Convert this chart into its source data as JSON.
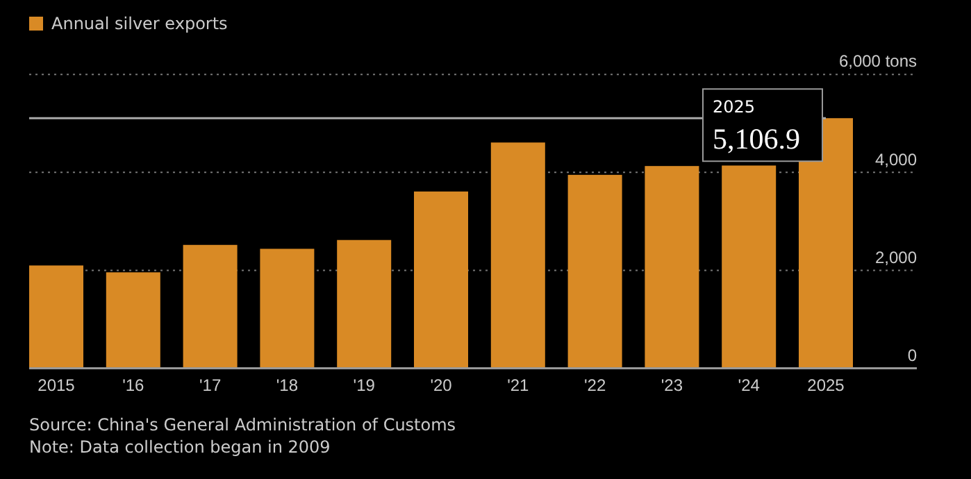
{
  "chart_data": {
    "type": "bar",
    "categories": [
      "2015",
      "'16",
      "'17",
      "'18",
      "'19",
      "'20",
      "'21",
      "'22",
      "'23",
      "'24",
      "2025"
    ],
    "series": [
      {
        "name": "Annual silver exports",
        "color": "#d98a25",
        "values": [
          2100,
          1960,
          2520,
          2440,
          2620,
          3610,
          4610,
          3950,
          4130,
          4140,
          5106.9
        ]
      }
    ],
    "ylim": [
      0,
      6000
    ],
    "yticks": [
      0,
      {
        "value": 2000,
        "label": "2,000"
      },
      {
        "value": 4000,
        "label": "4,000"
      },
      {
        "value": 6000,
        "label": "6,000 tons"
      }
    ],
    "grid": "y",
    "legend": "top left",
    "ref_lines": [
      {
        "axis": "y",
        "value": 5106.9,
        "color": "#aaaaaa"
      }
    ],
    "annotations": [
      {
        "text": "2025\n5,106.9",
        "x": "2025",
        "y": 5106.9
      },
      "Source: China's General Administration of Customs",
      "Note: Data collection began in 2009"
    ]
  }
}
